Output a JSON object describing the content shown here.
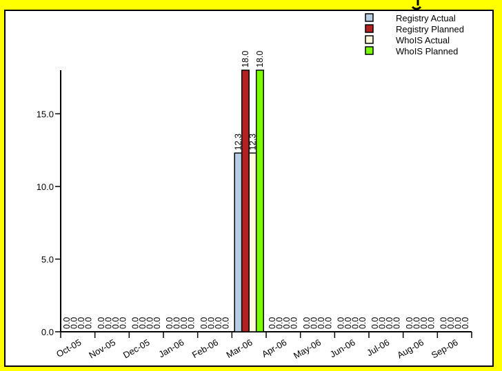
{
  "colors": {
    "background_frame": "#ffff00",
    "panel": "#ffffff",
    "registry_actual": "#b8cce4",
    "registry_planned": "#b22222",
    "whois_actual": "#fffadc",
    "whois_planned": "#7cfc00"
  },
  "chart_data": {
    "type": "bar",
    "title": "",
    "xlabel": "",
    "ylabel": "",
    "ylim": [
      0,
      18
    ],
    "yticks": [
      "0.0",
      "5.0",
      "10.0",
      "15.0"
    ],
    "ytick_values": [
      0,
      5,
      10,
      15
    ],
    "categories": [
      "Oct-05",
      "Nov-05",
      "Dec-05",
      "Jan-06",
      "Feb-06",
      "Mar-06",
      "Apr-06",
      "May-06",
      "Jun-06",
      "Jul-06",
      "Aug-06",
      "Sep-06"
    ],
    "legend_position": "top-right",
    "series": [
      {
        "name": "Registry Actual",
        "color": "#b8cce4",
        "values": [
          0,
          0,
          0,
          0,
          0,
          12.3,
          0,
          0,
          0,
          0,
          0,
          0
        ],
        "labels": [
          "0.0",
          "0.0",
          "0.0",
          "0.0",
          "0.0",
          "12.3",
          "0.0",
          "0.0",
          "0.0",
          "0.0",
          "0.0",
          "0.0"
        ]
      },
      {
        "name": "Registry Planned",
        "color": "#b22222",
        "values": [
          0,
          0,
          0,
          0,
          0,
          18.0,
          0,
          0,
          0,
          0,
          0,
          0
        ],
        "labels": [
          "0.0",
          "0.0",
          "0.0",
          "0.0",
          "0.0",
          "18.0",
          "0.0",
          "0.0",
          "0.0",
          "0.0",
          "0.0",
          "0.0"
        ]
      },
      {
        "name": "WhoIS Actual",
        "color": "#fffadc",
        "values": [
          0,
          0,
          0,
          0,
          0,
          12.3,
          0,
          0,
          0,
          0,
          0,
          0
        ],
        "labels": [
          "0.0",
          "0.0",
          "0.0",
          "0.0",
          "0.0",
          "12.3",
          "0.0",
          "0.0",
          "0.0",
          "0.0",
          "0.0",
          "0.0"
        ]
      },
      {
        "name": "WhoIS Planned",
        "color": "#7cfc00",
        "values": [
          0,
          0,
          0,
          0,
          0,
          18.0,
          0,
          0,
          0,
          0,
          0,
          0
        ],
        "labels": [
          "0.0",
          "0.0",
          "0.0",
          "0.0",
          "0.0",
          "18.0",
          "0.0",
          "0.0",
          "0.0",
          "0.0",
          "0.0",
          "0.0"
        ]
      }
    ]
  }
}
